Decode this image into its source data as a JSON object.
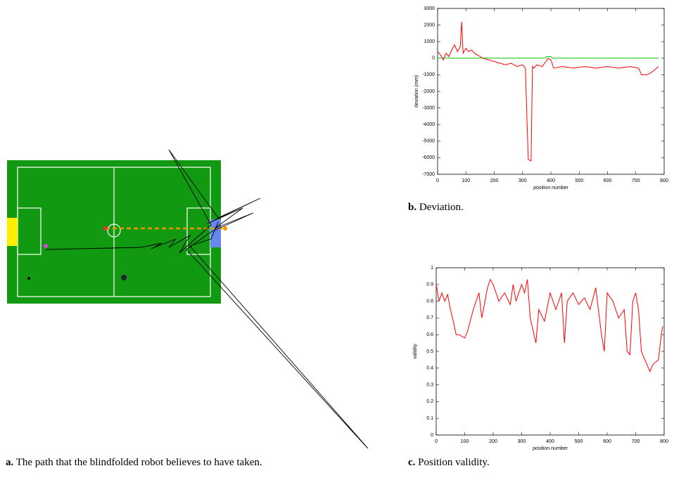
{
  "figure_a": {
    "label": "a.",
    "caption": "The path that the blindfolded robot believes to have taken."
  },
  "chart_data": [
    {
      "type": "line",
      "caption_label": "b.",
      "caption": "Deviation.",
      "xlabel": "position number",
      "ylabel": "deviation (mm)",
      "xlim": [
        0,
        800
      ],
      "xticks": [
        0,
        100,
        200,
        300,
        400,
        500,
        600,
        700,
        800
      ],
      "ylim": [
        -7000,
        3000
      ],
      "yticks": [
        -7000,
        -6000,
        -5000,
        -4000,
        -3000,
        -2000,
        -1000,
        0,
        1000,
        2000,
        3000
      ],
      "series": [
        {
          "color": "#00cc00",
          "x": [
            0,
            380,
            385,
            400,
            405,
            780
          ],
          "values": [
            0,
            0,
            100,
            100,
            0,
            0
          ]
        },
        {
          "color": "#ff0000",
          "x": [
            0,
            10,
            20,
            30,
            40,
            50,
            60,
            70,
            80,
            85,
            90,
            100,
            110,
            120,
            130,
            140,
            160,
            180,
            200,
            220,
            240,
            260,
            280,
            300,
            310,
            320,
            330,
            335,
            340,
            350,
            370,
            390,
            400,
            410,
            440,
            480,
            520,
            560,
            600,
            640,
            680,
            710,
            720,
            740,
            760,
            780
          ],
          "values": [
            400,
            200,
            -100,
            300,
            100,
            500,
            800,
            400,
            700,
            2200,
            300,
            600,
            400,
            500,
            300,
            200,
            0,
            -100,
            -200,
            -300,
            -400,
            -300,
            -500,
            -400,
            -600,
            -6100,
            -6200,
            -500,
            -600,
            -400,
            -500,
            0,
            -100,
            -600,
            -500,
            -600,
            -500,
            -600,
            -500,
            -600,
            -500,
            -600,
            -1000,
            -1000,
            -800,
            -500
          ]
        }
      ]
    },
    {
      "type": "line",
      "caption_label": "c.",
      "caption": "Position validity.",
      "xlabel": "position number",
      "ylabel": "validity",
      "xlim": [
        0,
        800
      ],
      "xticks": [
        0,
        100,
        200,
        300,
        400,
        500,
        600,
        700,
        800
      ],
      "ylim": [
        0,
        1
      ],
      "yticks": [
        0,
        0.1,
        0.2,
        0.3,
        0.4,
        0.5,
        0.6,
        0.7,
        0.8,
        0.9,
        1
      ],
      "series": [
        {
          "color": "#ff0000",
          "x": [
            0,
            10,
            20,
            30,
            40,
            50,
            60,
            70,
            80,
            100,
            110,
            130,
            150,
            160,
            180,
            190,
            200,
            220,
            240,
            260,
            270,
            280,
            300,
            310,
            320,
            330,
            350,
            360,
            380,
            400,
            420,
            440,
            450,
            460,
            480,
            500,
            520,
            540,
            560,
            580,
            590,
            600,
            620,
            640,
            660,
            670,
            680,
            690,
            700,
            710,
            720,
            740,
            750,
            760,
            780,
            790,
            795
          ],
          "values": [
            0.9,
            0.8,
            0.85,
            0.8,
            0.84,
            0.75,
            0.68,
            0.6,
            0.6,
            0.58,
            0.62,
            0.75,
            0.85,
            0.7,
            0.88,
            0.93,
            0.9,
            0.8,
            0.85,
            0.78,
            0.9,
            0.8,
            0.9,
            0.85,
            0.93,
            0.7,
            0.55,
            0.75,
            0.68,
            0.85,
            0.75,
            0.85,
            0.55,
            0.8,
            0.85,
            0.78,
            0.82,
            0.75,
            0.88,
            0.6,
            0.5,
            0.85,
            0.8,
            0.7,
            0.75,
            0.5,
            0.48,
            0.8,
            0.85,
            0.75,
            0.5,
            0.42,
            0.38,
            0.42,
            0.45,
            0.6,
            0.65
          ]
        }
      ]
    }
  ]
}
